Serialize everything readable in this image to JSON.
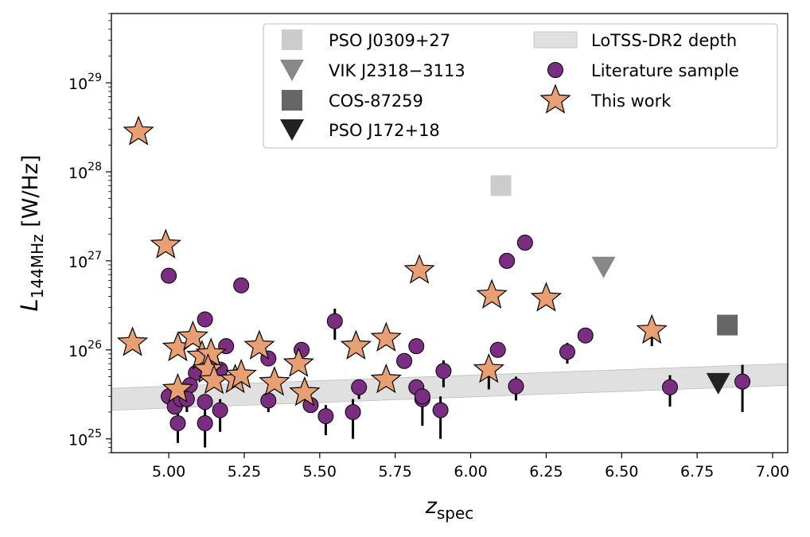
{
  "chart_data": {
    "type": "scatter",
    "title": "",
    "xlabel": {
      "main": "z",
      "sub": "spec"
    },
    "ylabel": {
      "main": "L",
      "sub": "144MHz",
      "unit": "[W/Hz]"
    },
    "x_range": [
      4.81,
      7.05
    ],
    "y_scale": "log",
    "y_range": [
      7e+24,
      6e+29
    ],
    "x_ticks": [
      {
        "value": 5.0,
        "label": "5.00"
      },
      {
        "value": 5.25,
        "label": "5.25"
      },
      {
        "value": 5.5,
        "label": "5.50"
      },
      {
        "value": 5.75,
        "label": "5.75"
      },
      {
        "value": 6.0,
        "label": "6.00"
      },
      {
        "value": 6.25,
        "label": "6.25"
      },
      {
        "value": 6.5,
        "label": "6.50"
      },
      {
        "value": 6.75,
        "label": "6.75"
      },
      {
        "value": 7.0,
        "label": "7.00"
      }
    ],
    "y_ticks": [
      {
        "value": 1e+25,
        "base": "10",
        "exp": "25"
      },
      {
        "value": 1e+26,
        "base": "10",
        "exp": "26"
      },
      {
        "value": 1e+27,
        "base": "10",
        "exp": "27"
      },
      {
        "value": 1e+28,
        "base": "10",
        "exp": "28"
      },
      {
        "value": 1e+29,
        "base": "10",
        "exp": "29"
      }
    ],
    "grid": false,
    "legend_position": "top-right",
    "legend": [
      {
        "key": "pso_j0309",
        "label": "PSO J0309+27"
      },
      {
        "key": "vik_j2318",
        "label": "VIK J2318−3113"
      },
      {
        "key": "cos_87259",
        "label": "COS-87259"
      },
      {
        "key": "pso_j172",
        "label": "PSO J172+18"
      },
      {
        "key": "lotss_band",
        "label": "LoTSS-DR2 depth"
      },
      {
        "key": "literature",
        "label": "Literature sample"
      },
      {
        "key": "this_work",
        "label": "This work"
      }
    ],
    "colors": {
      "pso_j0309": "#cccccc",
      "vik_j2318": "#888888",
      "cos_87259": "#666666",
      "pso_j172": "#222222",
      "lotss_band": "#d6d6d6",
      "literature": "#7b2d82",
      "this_work": "#e8a072",
      "edge": "#000000"
    },
    "lotss_band": {
      "x": [
        4.81,
        7.05
      ],
      "lower": [
        2.1e+25,
        4e+25
      ],
      "upper": [
        3.7e+25,
        7e+25
      ]
    },
    "series": [
      {
        "key": "pso_j0309",
        "marker": "square",
        "points": [
          {
            "x": 6.1,
            "y": 7e+27
          }
        ]
      },
      {
        "key": "vik_j2318",
        "marker": "triangle-down",
        "points": [
          {
            "x": 6.44,
            "y": 8.5e+26
          }
        ]
      },
      {
        "key": "cos_87259",
        "marker": "square",
        "points": [
          {
            "x": 6.85,
            "y": 1.9e+26
          }
        ]
      },
      {
        "key": "pso_j172",
        "marker": "triangle-down",
        "points": [
          {
            "x": 6.82,
            "y": 4.2e+25
          }
        ]
      },
      {
        "key": "literature",
        "marker": "circle",
        "points": [
          {
            "x": 5.0,
            "y": 6.8e+26
          },
          {
            "x": 5.24,
            "y": 5.3e+26
          },
          {
            "x": 5.12,
            "y": 2.2e+26
          },
          {
            "x": 5.19,
            "y": 1.1e+26
          },
          {
            "x": 5.14,
            "y": 7.5e+25
          },
          {
            "x": 5.17,
            "y": 6e+25
          },
          {
            "x": 5.09,
            "y": 5.5e+25
          },
          {
            "x": 5.07,
            "y": 4e+25
          },
          {
            "x": 5.0,
            "y": 3e+25
          },
          {
            "x": 5.02,
            "y": 2.3e+25
          },
          {
            "x": 5.04,
            "y": 2.8e+25
          },
          {
            "x": 5.06,
            "y": 2.8e+25,
            "err": [
              2e+25,
              3.6e+25
            ]
          },
          {
            "x": 5.03,
            "y": 1.5e+25,
            "err": [
              9e+24,
              2.1e+25
            ]
          },
          {
            "x": 5.12,
            "y": 2.6e+25
          },
          {
            "x": 5.12,
            "y": 1.5e+25,
            "err": [
              8e+24,
              2.2e+25
            ]
          },
          {
            "x": 5.17,
            "y": 2.1e+25,
            "err": [
              1.2e+25,
              2.8e+25
            ]
          },
          {
            "x": 5.33,
            "y": 2.7e+25,
            "err": [
              2e+25,
              3.3e+25
            ]
          },
          {
            "x": 5.33,
            "y": 8e+25
          },
          {
            "x": 5.44,
            "y": 1e+26
          },
          {
            "x": 5.47,
            "y": 2.4e+25
          },
          {
            "x": 5.52,
            "y": 1.8e+25,
            "err": [
              1.1e+25,
              2.4e+25
            ]
          },
          {
            "x": 5.55,
            "y": 2.1e+26,
            "err": [
              1.3e+26,
              2.9e+26
            ]
          },
          {
            "x": 5.61,
            "y": 2e+25,
            "err": [
              1e+25,
              2.8e+25
            ]
          },
          {
            "x": 5.63,
            "y": 3.8e+25,
            "err": [
              2.8e+25,
              4.6e+25
            ]
          },
          {
            "x": 5.78,
            "y": 7.5e+25
          },
          {
            "x": 5.82,
            "y": 1.1e+26
          },
          {
            "x": 5.82,
            "y": 3.8e+25
          },
          {
            "x": 5.84,
            "y": 2.8e+25,
            "err": [
              1.4e+25,
              4e+25
            ]
          },
          {
            "x": 5.84,
            "y": 3e+25
          },
          {
            "x": 5.9,
            "y": 2.1e+25,
            "err": [
              1e+25,
              3e+25
            ]
          },
          {
            "x": 5.91,
            "y": 5.8e+25,
            "err": [
              3.8e+25,
              7.6e+25
            ]
          },
          {
            "x": 6.09,
            "y": 1e+26
          },
          {
            "x": 6.12,
            "y": 1e+27
          },
          {
            "x": 6.15,
            "y": 3.9e+25,
            "err": [
              2.7e+25,
              5e+25
            ]
          },
          {
            "x": 6.18,
            "y": 1.6e+27
          },
          {
            "x": 6.32,
            "y": 9.5e+25,
            "err": [
              7e+25,
              1.2e+26
            ]
          },
          {
            "x": 6.38,
            "y": 1.45e+26
          },
          {
            "x": 6.66,
            "y": 3.8e+25,
            "err": [
              2.3e+25,
              5.2e+25
            ]
          },
          {
            "x": 6.9,
            "y": 4.4e+25,
            "err": [
              2e+25,
              6.8e+25
            ]
          }
        ]
      },
      {
        "key": "this_work",
        "marker": "star",
        "points": [
          {
            "x": 4.9,
            "y": 2.8e+28
          },
          {
            "x": 4.99,
            "y": 1.5e+27
          },
          {
            "x": 4.88,
            "y": 1.2e+26
          },
          {
            "x": 5.03,
            "y": 1.05e+26
          },
          {
            "x": 5.08,
            "y": 1.4e+26
          },
          {
            "x": 5.11,
            "y": 8.5e+25
          },
          {
            "x": 5.14,
            "y": 9e+25
          },
          {
            "x": 5.13,
            "y": 6e+25
          },
          {
            "x": 5.15,
            "y": 4.5e+25
          },
          {
            "x": 5.03,
            "y": 3.6e+25
          },
          {
            "x": 5.22,
            "y": 4.6e+25
          },
          {
            "x": 5.24,
            "y": 5.2e+25
          },
          {
            "x": 5.3,
            "y": 1.1e+26
          },
          {
            "x": 5.35,
            "y": 4.3e+25
          },
          {
            "x": 5.43,
            "y": 7e+25
          },
          {
            "x": 5.45,
            "y": 3.3e+25
          },
          {
            "x": 5.62,
            "y": 1.1e+26
          },
          {
            "x": 5.72,
            "y": 1.35e+26
          },
          {
            "x": 5.72,
            "y": 4.6e+25
          },
          {
            "x": 5.83,
            "y": 7.8e+26
          },
          {
            "x": 6.06,
            "y": 6e+25,
            "err": [
              3.6e+25,
              8.2e+25
            ]
          },
          {
            "x": 6.07,
            "y": 4.1e+26
          },
          {
            "x": 6.25,
            "y": 3.8e+26
          },
          {
            "x": 6.6,
            "y": 1.65e+26,
            "err": [
              1.1e+26,
              1.8e+26
            ]
          }
        ]
      }
    ]
  }
}
